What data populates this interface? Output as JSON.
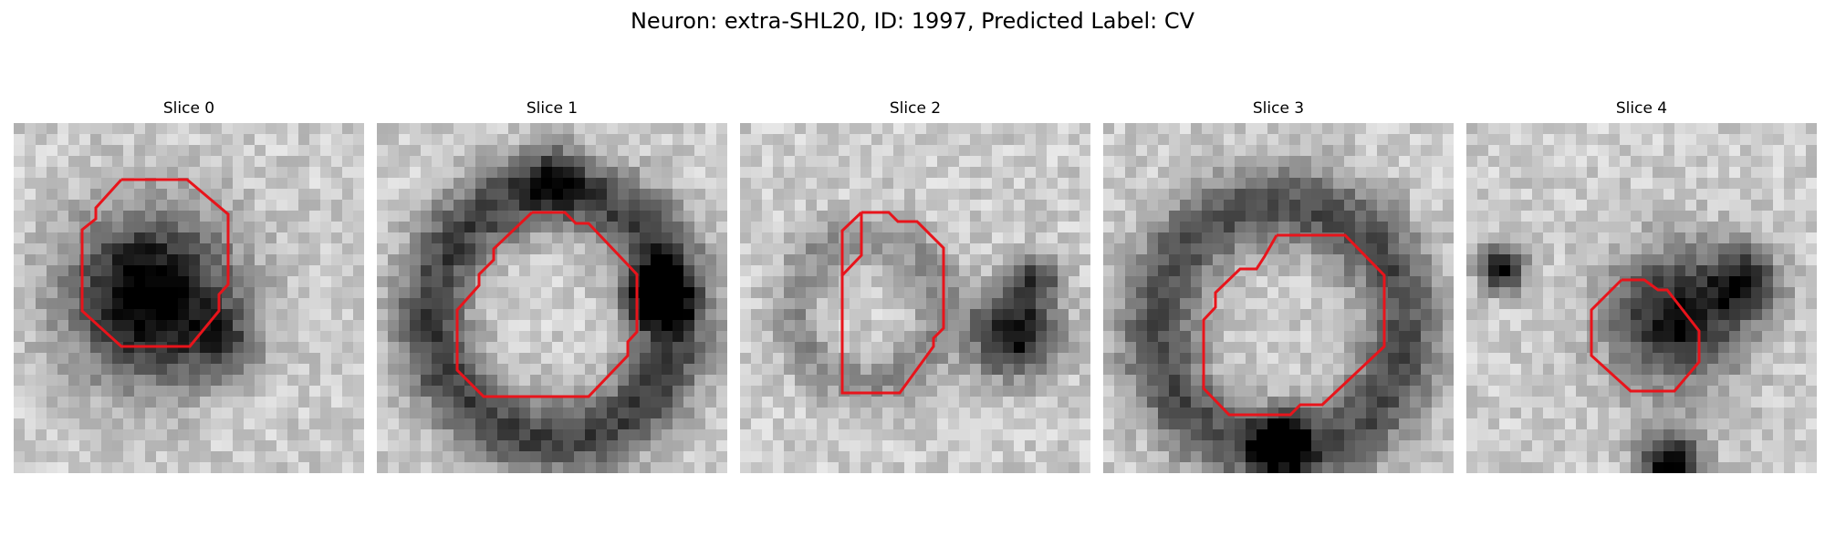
{
  "figure": {
    "title": "Neuron: extra-SHL20, ID: 1997, Predicted Label: CV"
  },
  "slices": [
    {
      "label": "Slice 0",
      "contour_color": "#e8141b"
    },
    {
      "label": "Slice 1",
      "contour_color": "#e8141b"
    },
    {
      "label": "Slice 2",
      "contour_color": "#e8141b"
    },
    {
      "label": "Slice 3",
      "contour_color": "#e8141b"
    },
    {
      "label": "Slice 4",
      "contour_color": "#e8141b"
    }
  ]
}
